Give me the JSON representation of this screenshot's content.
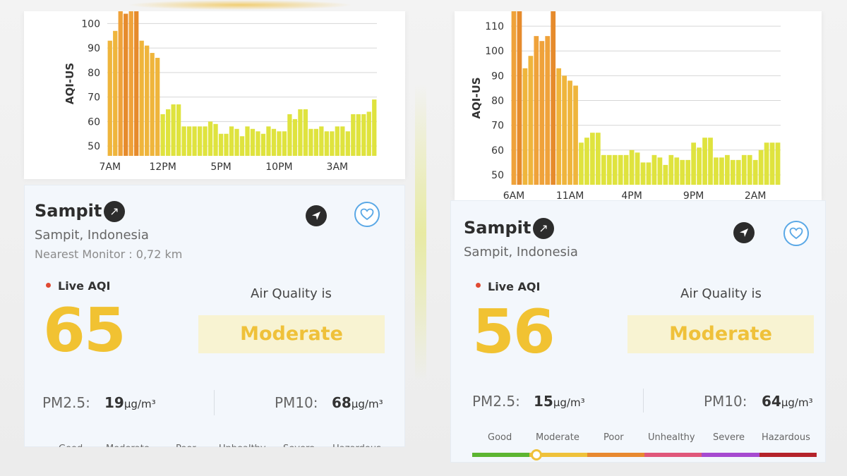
{
  "left": {
    "chart_data": {
      "type": "bar",
      "ylabel": "AQI-US",
      "yticks": [
        50,
        60,
        70,
        80,
        90,
        100
      ],
      "ylim": [
        46,
        105
      ],
      "xtick_labels": [
        "7AM",
        "12PM",
        "5PM",
        "10PM",
        "3AM"
      ],
      "xtick_index": [
        0,
        10,
        21,
        32,
        43
      ],
      "values": [
        93,
        97,
        105,
        104,
        105,
        105,
        93,
        91,
        88,
        86,
        63,
        65,
        67,
        67,
        58,
        58,
        58,
        58,
        58,
        60,
        59,
        55,
        55,
        58,
        57,
        54,
        58,
        57,
        56,
        55,
        58,
        57,
        56,
        56,
        63,
        61,
        65,
        65,
        57,
        57,
        58,
        56,
        56,
        58,
        58,
        56,
        63,
        63,
        63,
        64,
        69
      ],
      "highlight_index": [
        3,
        5
      ]
    },
    "city": "Sampit",
    "ext_icon": "↗",
    "region": "Sampit, Indonesia",
    "nearest_label": "Nearest Monitor :",
    "nearest_value": "0,72 km",
    "live_label": "Live AQI",
    "aqi": "65",
    "aq_is": "Air Quality is",
    "status": "Moderate",
    "pm25_label": "PM2.5:",
    "pm25_value": "19",
    "pm25_unit": "µg/m³",
    "pm10_label": "PM10:",
    "pm10_value": "68",
    "pm10_unit": "µg/m³",
    "scale_names": [
      "Good",
      "Moderate",
      "Poor",
      "Unhealthy",
      "Severe",
      "Hazardous"
    ]
  },
  "right": {
    "chart_data": {
      "type": "bar",
      "ylabel": "AQI-US",
      "yticks": [
        50,
        60,
        70,
        80,
        90,
        100,
        110
      ],
      "ylim": [
        46,
        116
      ],
      "xtick_labels": [
        "6AM",
        "11AM",
        "4PM",
        "9PM",
        "2AM"
      ],
      "xtick_index": [
        0,
        10,
        21,
        32,
        43
      ],
      "values": [
        116,
        117,
        93,
        98,
        106,
        104,
        106,
        117,
        93,
        90,
        88,
        86,
        63,
        65,
        67,
        67,
        58,
        58,
        58,
        58,
        58,
        60,
        59,
        55,
        55,
        58,
        57,
        54,
        58,
        57,
        56,
        56,
        63,
        61,
        65,
        65,
        57,
        57,
        58,
        56,
        56,
        58,
        58,
        56,
        60,
        63,
        63,
        63
      ],
      "highlight_index": [
        1,
        7
      ]
    },
    "city": "Sampit",
    "ext_icon": "↗",
    "region": "Sampit, Indonesia",
    "live_label": "Live AQI",
    "aqi": "56",
    "aq_is": "Air Quality is",
    "status": "Moderate",
    "pm25_label": "PM2.5:",
    "pm25_value": "15",
    "pm25_unit": "µg/m³",
    "pm10_label": "PM10:",
    "pm10_value": "64",
    "pm10_unit": "µg/m³",
    "scale_names": [
      "Good",
      "Moderate",
      "Poor",
      "Unhealthy",
      "Severe",
      "Hazardous"
    ],
    "scale_numbers": [
      "0",
      "50",
      "100",
      "150",
      "200",
      "300",
      "301"
    ],
    "scale_colors": [
      "#5cb531",
      "#efc13a",
      "#e8892f",
      "#e0577a",
      "#a64ad0",
      "#b5232a"
    ],
    "scale_marker_value": 56
  },
  "colors": {
    "accent": "#f1c232",
    "status_bg": "#f8f3d2",
    "fav": "#5aa8e6"
  }
}
